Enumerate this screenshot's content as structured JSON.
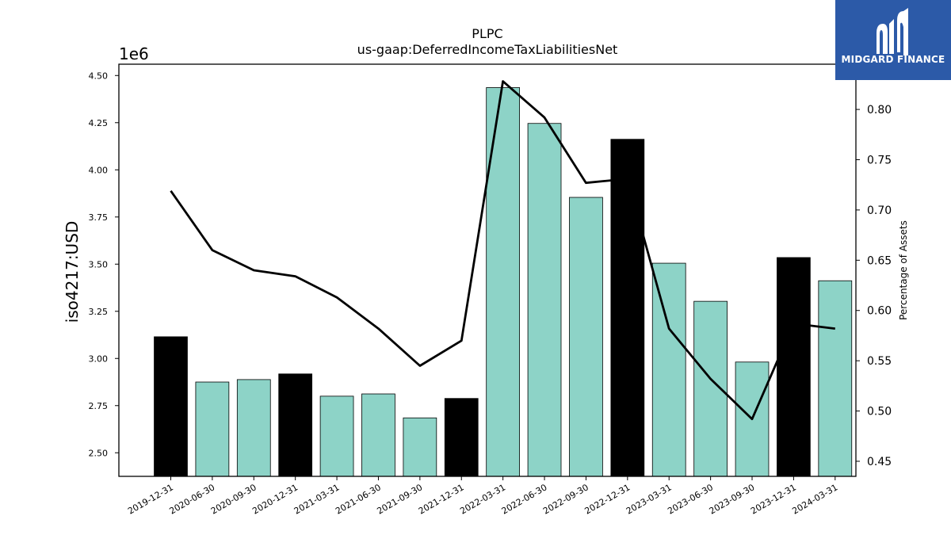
{
  "chart_data": {
    "type": "bar",
    "title": "PLPC",
    "subtitle": "us-gaap:DeferredIncomeTaxLiabilitiesNet",
    "ylabel_left": "iso4217:USD",
    "ylabel_right": "Percentage of Assets",
    "offset_text": "1e6",
    "categories": [
      "2019-12-31",
      "2020-06-30",
      "2020-09-30",
      "2020-12-31",
      "2021-03-31",
      "2021-06-30",
      "2021-09-30",
      "2021-12-31",
      "2022-03-31",
      "2022-06-30",
      "2022-09-30",
      "2022-12-31",
      "2023-03-31",
      "2023-06-30",
      "2023-09-30",
      "2023-12-31",
      "2024-03-31"
    ],
    "bar_values": [
      3.115,
      2.875,
      2.888,
      2.918,
      2.8,
      2.812,
      2.685,
      2.788,
      4.436,
      4.246,
      3.854,
      4.162,
      3.505,
      3.303,
      2.981,
      3.535,
      3.412
    ],
    "bar_colors": [
      "#000000",
      "#8dd3c7",
      "#8dd3c7",
      "#000000",
      "#8dd3c7",
      "#8dd3c7",
      "#8dd3c7",
      "#000000",
      "#8dd3c7",
      "#8dd3c7",
      "#8dd3c7",
      "#000000",
      "#8dd3c7",
      "#8dd3c7",
      "#8dd3c7",
      "#000000",
      "#8dd3c7"
    ],
    "line_values": [
      0.719,
      0.66,
      0.64,
      0.634,
      0.613,
      0.582,
      0.545,
      0.57,
      0.828,
      0.792,
      0.727,
      0.731,
      0.582,
      0.532,
      0.492,
      0.587,
      0.582
    ],
    "ylim_left": [
      2.375,
      4.56
    ],
    "ylim_right": [
      0.435,
      0.845
    ],
    "yticks_left": [
      "2.50",
      "2.75",
      "3.00",
      "3.25",
      "3.50",
      "3.75",
      "4.00",
      "4.25",
      "4.50"
    ],
    "yticks_right": [
      "0.45",
      "0.50",
      "0.55",
      "0.60",
      "0.65",
      "0.70",
      "0.75",
      "0.80"
    ],
    "grid": false
  },
  "logo": {
    "text": "MIDGARD FINANCE"
  }
}
